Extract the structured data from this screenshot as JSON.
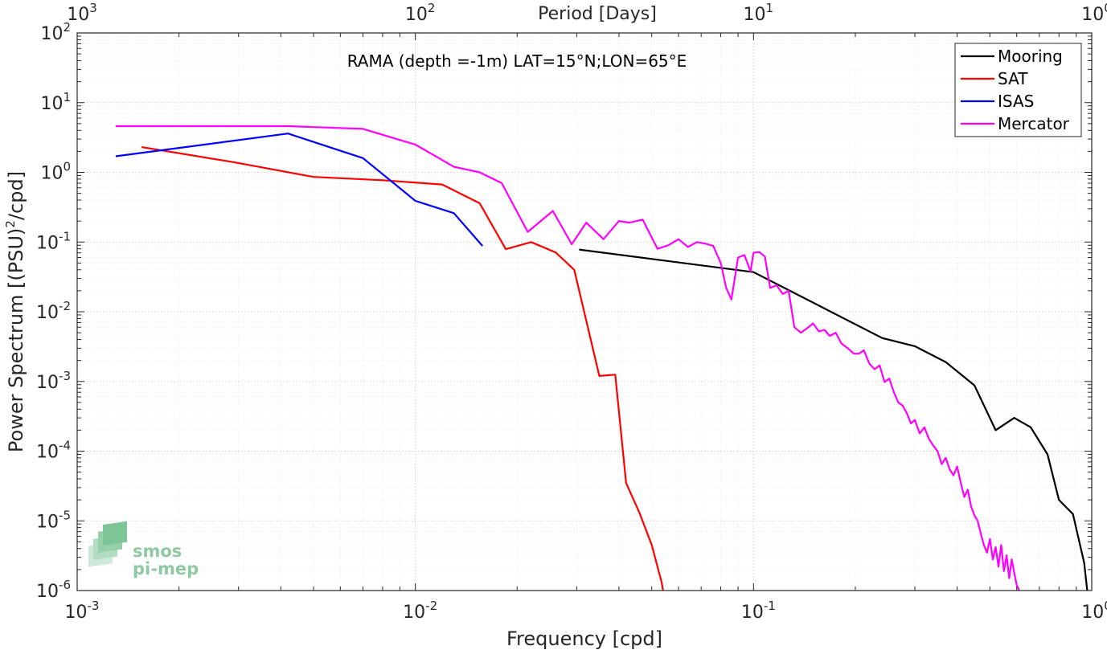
{
  "chart_data": {
    "type": "line",
    "x_scale": "log",
    "y_scale": "log",
    "xlim": [
      0.001,
      1
    ],
    "ylim": [
      1e-06,
      100
    ],
    "grid": true,
    "minor_grid": true,
    "xlabel": "Frequency [cpd]",
    "ylabel_main": "Power Spectrum [(PSU)",
    "ylabel_sup": "2",
    "ylabel_tail": "/cpd]",
    "top_axis_label": "Period [Days]",
    "annotation": "RAMA (depth =-1m) LAT=15°N;LON=65°E",
    "legend_position": "top-right",
    "x_ticks": [
      {
        "value": 0.001,
        "base": "10",
        "exp": "-3"
      },
      {
        "value": 0.01,
        "base": "10",
        "exp": "-2"
      },
      {
        "value": 0.1,
        "base": "10",
        "exp": "-1"
      },
      {
        "value": 1,
        "base": "10",
        "exp": "0"
      }
    ],
    "y_ticks": [
      {
        "value": 100,
        "base": "10",
        "exp": "2"
      },
      {
        "value": 10,
        "base": "10",
        "exp": "1"
      },
      {
        "value": 1,
        "base": "10",
        "exp": "0"
      },
      {
        "value": 0.1,
        "base": "10",
        "exp": "-1"
      },
      {
        "value": 0.01,
        "base": "10",
        "exp": "-2"
      },
      {
        "value": 0.001,
        "base": "10",
        "exp": "-3"
      },
      {
        "value": 0.0001,
        "base": "10",
        "exp": "-4"
      },
      {
        "value": 1e-05,
        "base": "10",
        "exp": "-5"
      },
      {
        "value": 1e-06,
        "base": "10",
        "exp": "-6"
      }
    ],
    "top_ticks": [
      {
        "value": 0.001,
        "base": "10",
        "exp": "3"
      },
      {
        "value": 0.01,
        "base": "10",
        "exp": "2"
      },
      {
        "value": 0.1,
        "base": "10",
        "exp": "1"
      },
      {
        "value": 1,
        "base": "10",
        "exp": "0"
      }
    ],
    "series": [
      {
        "name": "Mooring",
        "color": "#000000",
        "points": [
          [
            0.0305,
            0.078
          ],
          [
            0.1,
            0.037
          ],
          [
            0.24,
            0.0042
          ],
          [
            0.3,
            0.0032
          ],
          [
            0.37,
            0.0019
          ],
          [
            0.45,
            0.00088
          ],
          [
            0.52,
            0.0002
          ],
          [
            0.59,
            0.0003
          ],
          [
            0.66,
            0.00022
          ],
          [
            0.74,
            9e-05
          ],
          [
            0.8,
            2e-05
          ],
          [
            0.88,
            1.25e-05
          ],
          [
            0.95,
            2.5e-06
          ],
          [
            0.97,
            1e-06
          ]
        ]
      },
      {
        "name": "SAT",
        "color": "#ff0000",
        "points": [
          [
            0.00155,
            2.3
          ],
          [
            0.0029,
            1.4
          ],
          [
            0.005,
            0.86
          ],
          [
            0.008,
            0.77
          ],
          [
            0.012,
            0.67
          ],
          [
            0.0155,
            0.36
          ],
          [
            0.0185,
            0.079
          ],
          [
            0.022,
            0.1
          ],
          [
            0.026,
            0.071
          ],
          [
            0.0295,
            0.04
          ],
          [
            0.035,
            0.0012
          ],
          [
            0.039,
            0.00125
          ],
          [
            0.042,
            3.5e-05
          ],
          [
            0.046,
            1.3e-05
          ],
          [
            0.05,
            4.5e-06
          ],
          [
            0.0535,
            1.3e-06
          ],
          [
            0.054,
            1e-06
          ]
        ]
      },
      {
        "name": "ISAS",
        "color": "#0000ff",
        "points": [
          [
            0.0013,
            1.7
          ],
          [
            0.0042,
            3.6
          ],
          [
            0.007,
            1.6
          ],
          [
            0.01,
            0.39
          ],
          [
            0.013,
            0.26
          ],
          [
            0.0158,
            0.088
          ]
        ]
      },
      {
        "name": "Mercator",
        "color": "#ff00ff",
        "points": [
          [
            0.0013,
            4.6
          ],
          [
            0.0042,
            4.6
          ],
          [
            0.007,
            4.2
          ],
          [
            0.01,
            2.5
          ],
          [
            0.013,
            1.2
          ],
          [
            0.0155,
            1.0
          ],
          [
            0.018,
            0.7
          ],
          [
            0.0215,
            0.14
          ],
          [
            0.0255,
            0.28
          ],
          [
            0.029,
            0.093
          ],
          [
            0.032,
            0.19
          ],
          [
            0.036,
            0.11
          ],
          [
            0.04,
            0.2
          ],
          [
            0.043,
            0.19
          ],
          [
            0.047,
            0.21
          ],
          [
            0.052,
            0.08
          ],
          [
            0.056,
            0.09
          ],
          [
            0.06,
            0.11
          ],
          [
            0.064,
            0.085
          ],
          [
            0.068,
            0.1
          ],
          [
            0.072,
            0.095
          ],
          [
            0.076,
            0.088
          ],
          [
            0.08,
            0.05
          ],
          [
            0.083,
            0.022
          ],
          [
            0.086,
            0.015
          ],
          [
            0.09,
            0.06
          ],
          [
            0.094,
            0.065
          ],
          [
            0.098,
            0.038
          ],
          [
            0.1,
            0.07
          ],
          [
            0.104,
            0.072
          ],
          [
            0.108,
            0.062
          ],
          [
            0.112,
            0.022
          ],
          [
            0.117,
            0.024
          ],
          [
            0.122,
            0.018
          ],
          [
            0.127,
            0.02
          ],
          [
            0.132,
            0.006
          ],
          [
            0.138,
            0.005
          ],
          [
            0.144,
            0.0058
          ],
          [
            0.15,
            0.0068
          ],
          [
            0.156,
            0.0052
          ],
          [
            0.162,
            0.0055
          ],
          [
            0.168,
            0.0045
          ],
          [
            0.175,
            0.005
          ],
          [
            0.182,
            0.0035
          ],
          [
            0.19,
            0.003
          ],
          [
            0.198,
            0.0025
          ],
          [
            0.205,
            0.0025
          ],
          [
            0.212,
            0.0028
          ],
          [
            0.22,
            0.0018
          ],
          [
            0.228,
            0.0015
          ],
          [
            0.236,
            0.0017
          ],
          [
            0.244,
            0.00098
          ],
          [
            0.252,
            0.0011
          ],
          [
            0.26,
            0.0007
          ],
          [
            0.268,
            0.0005
          ],
          [
            0.276,
            0.00045
          ],
          [
            0.284,
            0.00035
          ],
          [
            0.292,
            0.00025
          ],
          [
            0.3,
            0.00028
          ],
          [
            0.31,
            0.00018
          ],
          [
            0.32,
            0.00022
          ],
          [
            0.33,
            0.00015
          ],
          [
            0.34,
            0.00012
          ],
          [
            0.35,
            0.0001
          ],
          [
            0.36,
            6.5e-05
          ],
          [
            0.37,
            8e-05
          ],
          [
            0.38,
            5.5e-05
          ],
          [
            0.39,
            4.5e-05
          ],
          [
            0.4,
            6e-05
          ],
          [
            0.41,
            3.5e-05
          ],
          [
            0.42,
            2.2e-05
          ],
          [
            0.43,
            2.8e-05
          ],
          [
            0.44,
            1.6e-05
          ],
          [
            0.45,
            1.2e-05
          ],
          [
            0.46,
            1e-05
          ],
          [
            0.47,
            6.5e-06
          ],
          [
            0.48,
            4.5e-06
          ],
          [
            0.49,
            3.5e-06
          ],
          [
            0.5,
            5.5e-06
          ],
          [
            0.51,
            2.8e-06
          ],
          [
            0.52,
            4.2e-06
          ],
          [
            0.53,
            2.2e-06
          ],
          [
            0.54,
            4.5e-06
          ],
          [
            0.55,
            1.9e-06
          ],
          [
            0.56,
            3.2e-06
          ],
          [
            0.57,
            1.5e-06
          ],
          [
            0.58,
            2.8e-06
          ],
          [
            0.59,
            1.8e-06
          ],
          [
            0.6,
            1.2e-06
          ],
          [
            0.61,
            1e-06
          ]
        ]
      }
    ],
    "logo": {
      "line1": "smos",
      "line2": "pi-mep",
      "color": "#8fc9a3"
    }
  }
}
